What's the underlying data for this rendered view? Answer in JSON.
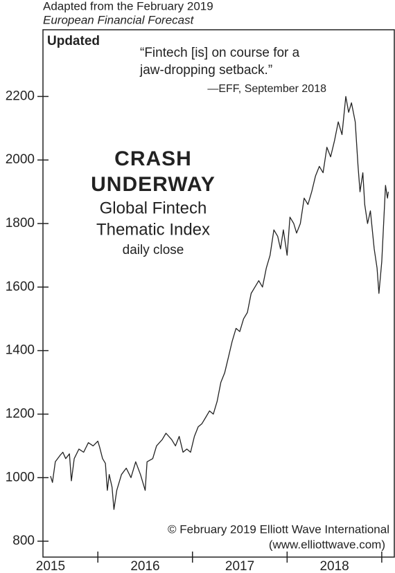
{
  "chart_data": {
    "type": "line",
    "header": [
      "Adapted from the February 2019",
      "European Financial Forecast"
    ],
    "badge": "Updated",
    "quote": [
      "“Fintech [is] on course for a",
      "jaw-dropping setback.”",
      "—EFF, September 2018"
    ],
    "title": [
      "CRASH",
      "UNDERWAY"
    ],
    "subtitle": [
      "Global Fintech",
      "Thematic Index",
      "daily close"
    ],
    "credit": [
      "© February 2019 Elliott Wave International",
      "(www.elliottwave.com)"
    ],
    "color": "#222222",
    "x": [
      2015.5,
      2015.52,
      2015.55,
      2015.6,
      2015.63,
      2015.66,
      2015.7,
      2015.72,
      2015.75,
      2015.8,
      2015.85,
      2015.9,
      2015.95,
      2016.0,
      2016.02,
      2016.05,
      2016.08,
      2016.1,
      2016.12,
      2016.15,
      2016.17,
      2016.2,
      2016.25,
      2016.3,
      2016.35,
      2016.4,
      2016.45,
      2016.5,
      2016.52,
      2016.58,
      2016.62,
      2016.68,
      2016.72,
      2016.78,
      2016.82,
      2016.86,
      2016.9,
      2016.94,
      2016.98,
      2017.02,
      2017.06,
      2017.1,
      2017.14,
      2017.18,
      2017.22,
      2017.26,
      2017.3,
      2017.34,
      2017.38,
      2017.42,
      2017.46,
      2017.5,
      2017.54,
      2017.58,
      2017.62,
      2017.66,
      2017.7,
      2017.74,
      2017.78,
      2017.82,
      2017.86,
      2017.9,
      2017.93,
      2017.96,
      2018.0,
      2018.03,
      2018.07,
      2018.1,
      2018.14,
      2018.18,
      2018.22,
      2018.26,
      2018.3,
      2018.34,
      2018.38,
      2018.42,
      2018.46,
      2018.5,
      2018.54,
      2018.58,
      2018.62,
      2018.65,
      2018.68,
      2018.72,
      2018.75,
      2018.77,
      2018.8,
      2018.82,
      2018.85,
      2018.88,
      2018.92,
      2018.95,
      2018.97,
      2019.0,
      2019.02,
      2019.04,
      2019.06,
      2019.07
    ],
    "values": [
      1005,
      985,
      1050,
      1070,
      1080,
      1060,
      1075,
      990,
      1060,
      1090,
      1080,
      1110,
      1100,
      1115,
      1095,
      1060,
      1045,
      960,
      1010,
      970,
      900,
      960,
      1010,
      1030,
      1000,
      1050,
      1010,
      960,
      1050,
      1060,
      1100,
      1120,
      1140,
      1120,
      1100,
      1130,
      1080,
      1090,
      1080,
      1130,
      1160,
      1170,
      1190,
      1210,
      1200,
      1240,
      1300,
      1330,
      1380,
      1430,
      1470,
      1460,
      1500,
      1520,
      1580,
      1600,
      1620,
      1600,
      1660,
      1700,
      1780,
      1760,
      1720,
      1780,
      1700,
      1820,
      1800,
      1770,
      1800,
      1880,
      1860,
      1900,
      1950,
      1980,
      1960,
      2040,
      2010,
      2060,
      2120,
      2080,
      2200,
      2150,
      2180,
      2120,
      1980,
      1900,
      1960,
      1860,
      1800,
      1840,
      1720,
      1660,
      1580,
      1680,
      1800,
      1920,
      1880,
      1900
    ],
    "xlim": [
      2015.42,
      2019.14
    ],
    "ylim": [
      750,
      2410
    ],
    "yticks": [
      800,
      1000,
      1200,
      1400,
      1600,
      1800,
      2000,
      2200
    ],
    "xticks": [
      {
        "value": 2015.5,
        "label": "2015"
      },
      {
        "value": 2016.5,
        "label": "2016"
      },
      {
        "value": 2017.5,
        "label": "2017"
      },
      {
        "value": 2018.5,
        "label": "2018"
      }
    ],
    "xminor": [
      2016,
      2017,
      2018,
      2019
    ]
  }
}
